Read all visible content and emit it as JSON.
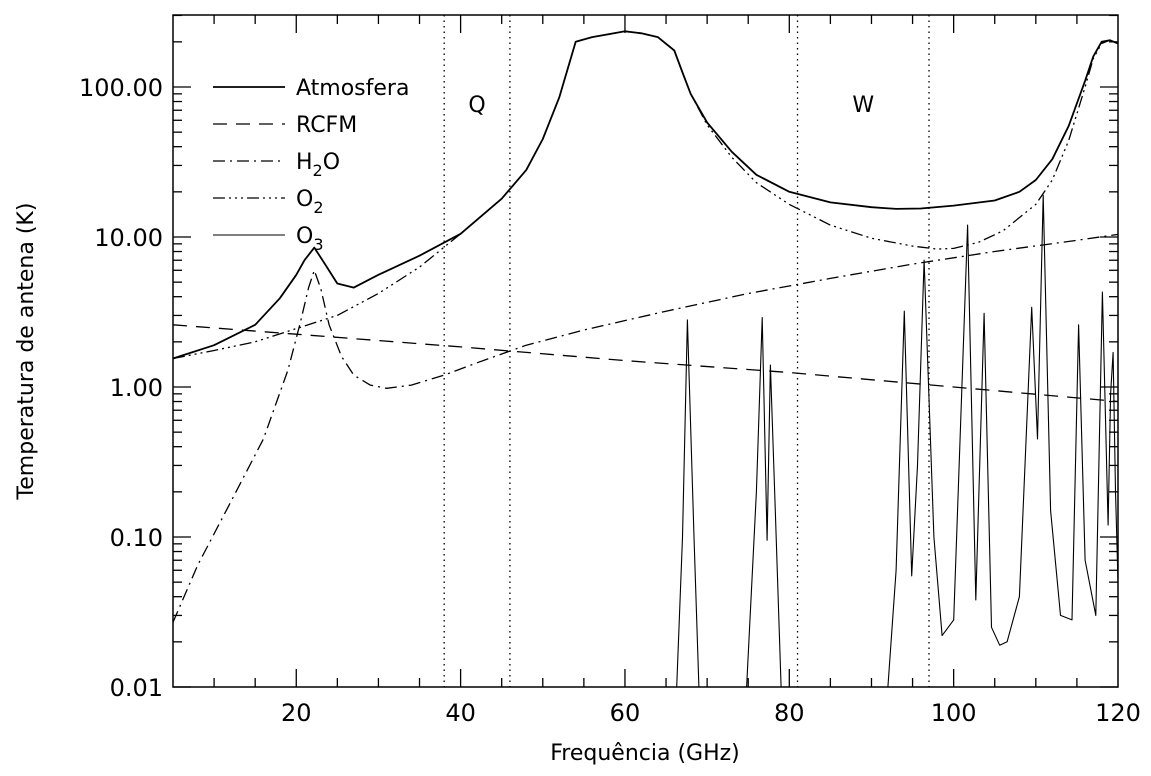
{
  "chart_data": {
    "type": "line",
    "title": "",
    "xlabel": "Frequência (GHz)",
    "ylabel": "Temperatura de antena (K)",
    "xlim": [
      5,
      120
    ],
    "ylim": [
      0.01,
      300
    ],
    "yscale": "log",
    "x_ticks": [
      20,
      40,
      60,
      80,
      100,
      120
    ],
    "x_tick_labels": [
      "20",
      "40",
      "60",
      "80",
      "100",
      "120"
    ],
    "y_ticks": [
      0.01,
      0.1,
      1,
      10,
      100
    ],
    "y_tick_labels": [
      "0.01",
      "0.10",
      "1.00",
      "10.00",
      "100.00"
    ],
    "legend_position": "top-left",
    "bands": [
      {
        "label": "Q",
        "x_start": 38,
        "x_end": 46
      },
      {
        "label": "W",
        "x_start": 81,
        "x_end": 97
      }
    ],
    "legend": [
      {
        "text": "Atmosfera",
        "sub": "",
        "tail": "",
        "style": "solid-thick"
      },
      {
        "text": "RCFM",
        "sub": "",
        "tail": "",
        "style": "dashed"
      },
      {
        "text": "H",
        "sub": "2",
        "tail": "O",
        "style": "dashdot"
      },
      {
        "text": "O",
        "sub": "2",
        "tail": "",
        "style": "dashdotdotdot"
      },
      {
        "text": "O",
        "sub": "3",
        "tail": "",
        "style": "solid-thin"
      }
    ],
    "series": [
      {
        "name": "Atmosfera",
        "x": [
          5,
          10,
          15,
          18,
          20,
          21,
          22.2,
          23.5,
          25,
          27,
          30,
          35,
          40,
          45,
          48,
          50,
          52,
          53,
          54,
          56,
          58,
          60,
          62,
          64,
          66,
          67,
          68,
          70,
          73,
          76,
          80,
          85,
          90,
          93,
          96,
          100,
          105,
          108,
          110,
          112,
          114,
          116,
          117,
          118,
          119,
          120
        ],
        "y": [
          1.55,
          1.9,
          2.6,
          3.9,
          5.6,
          7.0,
          8.5,
          6.6,
          4.9,
          4.6,
          5.6,
          7.5,
          10.5,
          18,
          28,
          45,
          85,
          130,
          200,
          215,
          225,
          235,
          228,
          215,
          175,
          125,
          90,
          58,
          37,
          26,
          20,
          17,
          15.8,
          15.4,
          15.5,
          16.2,
          17.5,
          20,
          24,
          33,
          55,
          110,
          160,
          200,
          205,
          195
        ]
      },
      {
        "name": "RCFM",
        "x": [
          5,
          20,
          40,
          60,
          80,
          100,
          120
        ],
        "y": [
          2.6,
          2.25,
          1.85,
          1.5,
          1.25,
          1.0,
          0.8
        ]
      },
      {
        "name": "H2O",
        "x": [
          5,
          8,
          12,
          16,
          19,
          20.5,
          21.5,
          22.2,
          23,
          24,
          25.5,
          27,
          29,
          31,
          34,
          38,
          42,
          48,
          55,
          65,
          75,
          85,
          95,
          105,
          115,
          120
        ],
        "y": [
          0.027,
          0.065,
          0.17,
          0.45,
          1.3,
          2.7,
          4.6,
          6.0,
          4.5,
          2.6,
          1.6,
          1.2,
          1.03,
          0.98,
          1.03,
          1.2,
          1.45,
          1.9,
          2.4,
          3.2,
          4.2,
          5.3,
          6.6,
          8.0,
          9.5,
          10.4
        ]
      },
      {
        "name": "O2",
        "x": [
          5,
          10,
          15,
          20,
          25,
          30,
          35,
          40,
          45,
          48,
          50,
          52,
          53,
          54,
          56,
          58,
          60,
          62,
          64,
          66,
          67,
          68,
          70,
          73,
          76,
          80,
          85,
          90,
          95,
          98,
          100,
          103,
          106,
          110,
          112,
          114,
          116,
          117,
          118,
          119,
          120
        ],
        "y": [
          1.55,
          1.75,
          2.0,
          2.45,
          3.0,
          4.2,
          6.3,
          10.5,
          18,
          28,
          45,
          85,
          130,
          200,
          215,
          225,
          235,
          228,
          215,
          175,
          125,
          90,
          56,
          34,
          23,
          16.5,
          12,
          9.8,
          8.7,
          8.3,
          8.4,
          9.2,
          11,
          16.5,
          24,
          44,
          100,
          155,
          195,
          205,
          195
        ]
      },
      {
        "name": "O3",
        "segments": [
          {
            "x": [
              66.3,
              67.0,
              67.6,
              68.4,
              69.0
            ],
            "y": [
              0.01,
              0.1,
              2.8,
              0.1,
              0.01
            ]
          },
          {
            "x": [
              74.8,
              76.0,
              76.7,
              77.3,
              77.7,
              78.3,
              79.0
            ],
            "y": [
              0.01,
              0.2,
              2.9,
              0.095,
              1.4,
              0.15,
              0.01
            ]
          },
          {
            "x": [
              92.0,
              93.0,
              94.0,
              94.9,
              95.6,
              96.4,
              97.6,
              98.6,
              100.0,
              101.7,
              102.7,
              103.7,
              104.6,
              105.6,
              106.5,
              108.0,
              109.5,
              110.2,
              110.9,
              111.8,
              113.0,
              114.4,
              115.2,
              116.0,
              117.3,
              118.1,
              118.8,
              119.1,
              119.4,
              119.7,
              120.0
            ],
            "y": [
              0.01,
              0.06,
              3.2,
              0.055,
              0.3,
              7.0,
              0.1,
              0.022,
              0.028,
              12.0,
              0.038,
              3.1,
              0.025,
              0.019,
              0.02,
              0.04,
              3.4,
              0.45,
              19.0,
              0.15,
              0.03,
              0.028,
              2.6,
              0.07,
              0.03,
              4.3,
              0.12,
              0.9,
              1.7,
              0.2,
              0.05
            ]
          }
        ]
      }
    ]
  }
}
